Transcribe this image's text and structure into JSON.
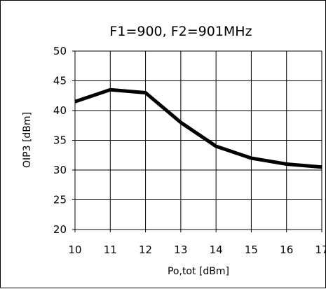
{
  "chart_data": {
    "type": "line",
    "title": "F1=900, F2=901MHz",
    "xlabel": "Po,tot [dBm]",
    "ylabel": "OIP3 [dBm]",
    "xlim": [
      10,
      17
    ],
    "ylim": [
      20,
      50
    ],
    "xticks": [
      10,
      11,
      12,
      13,
      14,
      15,
      16,
      17
    ],
    "yticks": [
      20,
      25,
      30,
      35,
      40,
      45,
      50
    ],
    "grid": true,
    "series": [
      {
        "x": [
          10,
          11,
          12,
          13,
          14,
          15,
          16,
          17
        ],
        "values": [
          41.5,
          43.5,
          43.0,
          38.0,
          34.0,
          32.0,
          31.0,
          30.5
        ],
        "color": "#000000"
      }
    ]
  }
}
